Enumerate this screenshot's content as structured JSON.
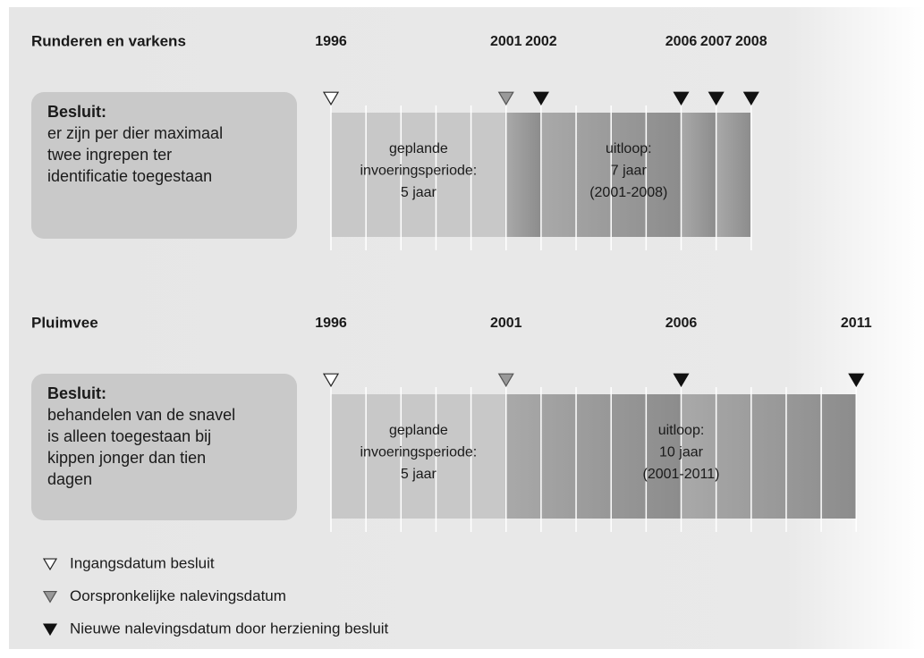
{
  "timelines": [
    {
      "title": "Runderen en varkens",
      "years": [
        1996,
        2001,
        2002,
        2006,
        2007,
        2008
      ],
      "markers": [
        0,
        1,
        2,
        2,
        2,
        2
      ],
      "decision": {
        "heading": "Besluit:",
        "lines": [
          "er zijn per dier maximaal",
          "twee ingrepen ter",
          "identificatie toegestaan"
        ]
      },
      "planned": [
        "geplande",
        "invoeringsperiode:",
        "5 jaar"
      ],
      "overrun": [
        "uitloop:",
        "7 jaar",
        "(2001-2008)"
      ]
    },
    {
      "title": "Pluimvee",
      "years": [
        1996,
        2001,
        2006,
        2011
      ],
      "markers": [
        0,
        1,
        2,
        2
      ],
      "decision": {
        "heading": "Besluit:",
        "lines": [
          "behandelen van de snavel",
          "is alleen toegestaan bij",
          "kippen jonger dan tien",
          "dagen"
        ]
      },
      "planned": [
        "geplande",
        "invoeringsperiode:",
        "5 jaar"
      ],
      "overrun": [
        "uitloop:",
        "10 jaar",
        "(2001-2011)"
      ]
    }
  ],
  "legend": [
    "Ingangsdatum besluit",
    "Oorspronkelijke nalevingsdatum",
    "Nieuwe nalevingsdatum door herziening besluit"
  ]
}
